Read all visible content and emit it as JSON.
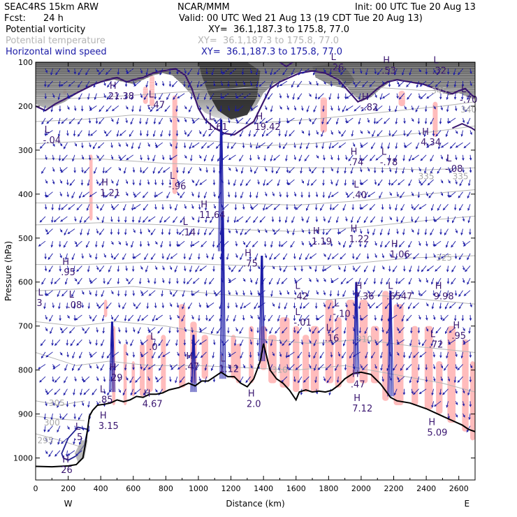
{
  "header": {
    "model": "SEAC4RS 15km ARW",
    "center": "NCAR/MMM",
    "init": "Init: 00 UTC Tue 20 Aug 13",
    "fcst_label": "Fcst:",
    "fcst_value": "24 h",
    "valid": "Valid: 00 UTC Wed 21 Aug 13 (19 CDT Tue 20 Aug 13)",
    "fields": [
      {
        "name": "Potential vorticity",
        "xy": "XY=  36.1,187.3 to 175.8, 77.0",
        "color": "#000000"
      },
      {
        "name": "Potential temperature",
        "xy": "XY=  36.1,187.3 to 175.8, 77.0",
        "color": "#b4b4b4"
      },
      {
        "name": "Horizontal wind speed",
        "xy": "XY=  36.1,187.3 to 175.8, 77.0",
        "color": "#1a1aa6"
      }
    ]
  },
  "colors": {
    "pv_contour": "#3a1670",
    "theta_contour": "#b4b4b4",
    "wind_barb": "#1a1aa6",
    "wind_shade": "#ffbcbc",
    "terrain": "#000000"
  },
  "chart_data": {
    "type": "cross-section",
    "xlabel": "Distance (km)",
    "ylabel": "Pressure (hPa)",
    "xlim": [
      0,
      2700
    ],
    "ylim": [
      1050,
      100
    ],
    "x_ticks": [
      0,
      200,
      400,
      600,
      800,
      1000,
      1200,
      1400,
      1600,
      1800,
      2000,
      2200,
      2400,
      2600
    ],
    "y_ticks": [
      100,
      200,
      300,
      400,
      500,
      600,
      700,
      800,
      900,
      1000
    ],
    "x_end_labels": {
      "left": "W",
      "right": "E"
    },
    "theta_labels": [
      {
        "x": 2660,
        "p": 208,
        "text": "340"
      },
      {
        "x": 2480,
        "p": 165,
        "text": "345"
      },
      {
        "x": 2400,
        "p": 360,
        "text": "335"
      },
      {
        "x": 2610,
        "p": 360,
        "text": "335"
      },
      {
        "x": 2510,
        "p": 545,
        "text": "325"
      },
      {
        "x": 2020,
        "p": 730,
        "text": "310"
      },
      {
        "x": 1500,
        "p": 800,
        "text": "310"
      },
      {
        "x": 130,
        "p": 875,
        "text": "305"
      },
      {
        "x": 100,
        "p": 920,
        "text": "300"
      },
      {
        "x": 60,
        "p": 960,
        "text": "295"
      }
    ],
    "extrema_labels": [
      {
        "letter": "L",
        "value": ".26",
        "x": 1840,
        "p": 105
      },
      {
        "letter": "H",
        "value": ".53",
        "x": 2160,
        "p": 112
      },
      {
        "letter": "L",
        "value": ".32",
        "x": 2470,
        "p": 112
      },
      {
        "letter": "H",
        "value": "21.38",
        "x": 480,
        "p": 170
      },
      {
        "letter": "L",
        "value": "-.47",
        "x": 720,
        "p": 190
      },
      {
        "letter": "H",
        "value": "-.82",
        "x": 2030,
        "p": 195
      },
      {
        "letter": "L",
        "value": "-.70",
        "x": 2640,
        "p": 178
      },
      {
        "letter": "L",
        "value": "1.61",
        "x": 1090,
        "p": 240
      },
      {
        "letter": "H",
        "value": "19.42",
        "x": 1380,
        "p": 240
      },
      {
        "letter": "L",
        "value": "-.04",
        "x": 80,
        "p": 270
      },
      {
        "letter": "H",
        "value": "4.34",
        "x": 2400,
        "p": 275
      },
      {
        "letter": "H",
        "value": ".74",
        "x": 1960,
        "p": 320
      },
      {
        "letter": "L",
        "value": "-.78",
        "x": 2150,
        "p": 320
      },
      {
        "letter": "L",
        "value": "-.08",
        "x": 2550,
        "p": 335
      },
      {
        "letter": "L",
        "value": "-.96",
        "x": 850,
        "p": 375
      },
      {
        "letter": "H",
        "value": "1.21",
        "x": 430,
        "p": 390
      },
      {
        "letter": "L",
        "value": ".40",
        "x": 1980,
        "p": 395
      },
      {
        "letter": "H",
        "value": "11.64",
        "x": 1040,
        "p": 440
      },
      {
        "letter": "L",
        "value": ".14",
        "x": 930,
        "p": 480
      },
      {
        "letter": "H",
        "value": "1.19",
        "x": 1730,
        "p": 500
      },
      {
        "letter": "H",
        "value": "1.22",
        "x": 1960,
        "p": 495
      },
      {
        "letter": "H",
        "value": ".75",
        "x": 1310,
        "p": 550
      },
      {
        "letter": "H",
        "value": "1.06",
        "x": 2210,
        "p": 530
      },
      {
        "letter": "H",
        "value": ".95",
        "x": 190,
        "p": 570
      },
      {
        "letter": "L",
        "value": "3",
        "x": 40,
        "p": 640
      },
      {
        "letter": "L",
        "value": ".08",
        "x": 230,
        "p": 645
      },
      {
        "letter": "L",
        "value": ".42",
        "x": 1620,
        "p": 625
      },
      {
        "letter": "H",
        "value": "7.36",
        "x": 1990,
        "p": 625
      },
      {
        "letter": "L",
        "value": ".6547",
        "x": 2190,
        "p": 625
      },
      {
        "letter": "H",
        "value": "9.98",
        "x": 2480,
        "p": 625
      },
      {
        "letter": "L",
        "value": "-.10",
        "x": 1860,
        "p": 665
      },
      {
        "letter": "L",
        "value": "-.01",
        "x": 1620,
        "p": 685
      },
      {
        "letter": "L",
        "value": ".16",
        "x": 1810,
        "p": 720
      },
      {
        "letter": "L",
        "value": ".72",
        "x": 2450,
        "p": 735
      },
      {
        "letter": "H",
        "value": ".95",
        "x": 2590,
        "p": 715
      },
      {
        "letter": "L",
        "value": ".0",
        "x": 730,
        "p": 740
      },
      {
        "letter": "H",
        "value": ".47",
        "x": 950,
        "p": 785
      },
      {
        "letter": "L",
        "value": "1.12",
        "x": 1160,
        "p": 790
      },
      {
        "letter": "H",
        "value": ".29",
        "x": 480,
        "p": 810
      },
      {
        "letter": "H",
        "value": ".47",
        "x": 1970,
        "p": 825
      },
      {
        "letter": "L",
        "value": ".85",
        "x": 420,
        "p": 860
      },
      {
        "letter": "H",
        "value": "4.67",
        "x": 690,
        "p": 870
      },
      {
        "letter": "H",
        "value": "2.0",
        "x": 1330,
        "p": 870
      },
      {
        "letter": "H",
        "value": "7.12",
        "x": 1980,
        "p": 880
      },
      {
        "letter": "H",
        "value": "5.09",
        "x": 2440,
        "p": 935
      },
      {
        "letter": "H",
        "value": "3.15",
        "x": 420,
        "p": 920
      },
      {
        "letter": "L",
        "value": ".5",
        "x": 270,
        "p": 945
      },
      {
        "letter": "H",
        "value": "26",
        "x": 190,
        "p": 1020
      }
    ]
  }
}
